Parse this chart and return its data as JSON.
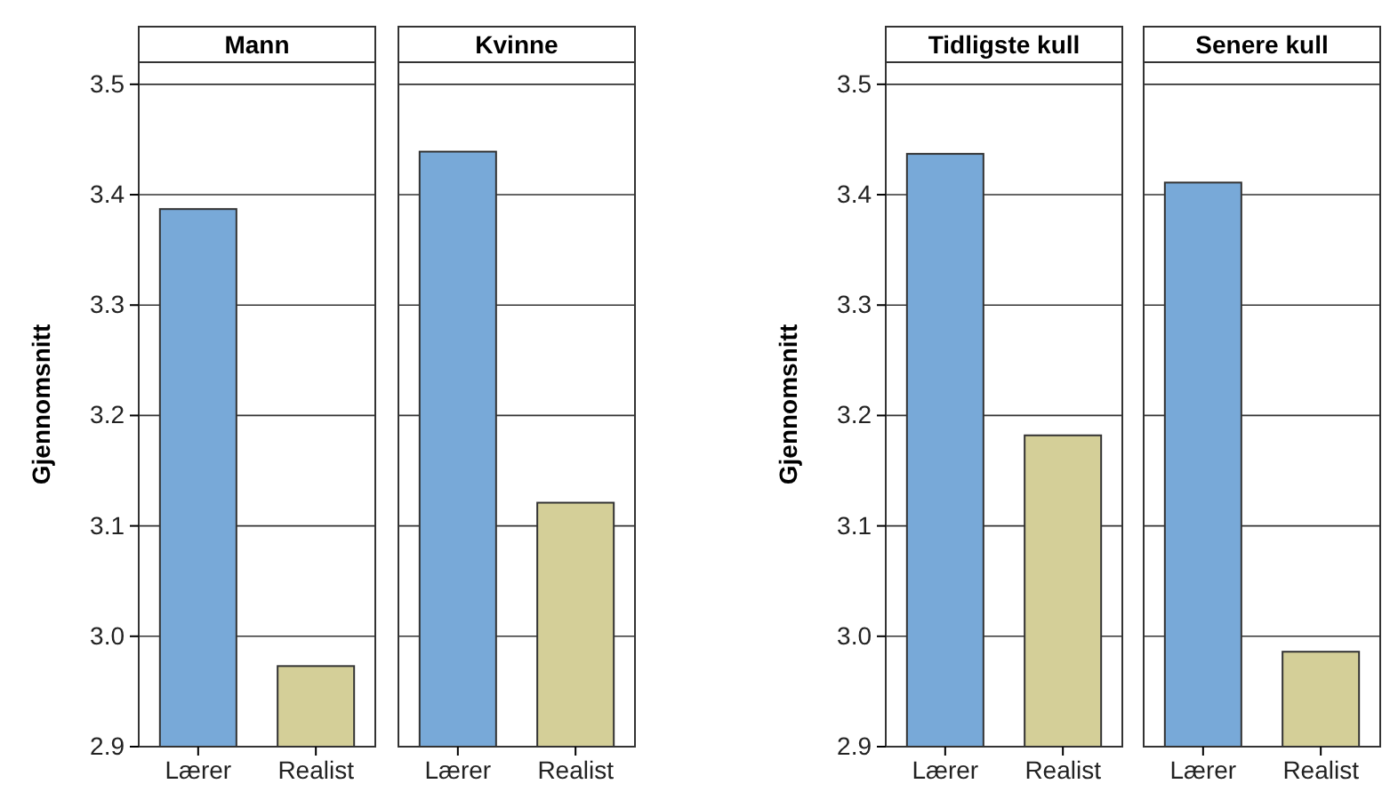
{
  "chart_data": [
    {
      "type": "bar",
      "title": "Mann",
      "ylabel": "Gjennomsnitt",
      "categories": [
        "Lærer",
        "Realist"
      ],
      "values": [
        3.387,
        2.973
      ],
      "colors": [
        "#78a9d8",
        "#d4cf98"
      ],
      "ylim": [
        2.9,
        3.52
      ],
      "yticks": [
        2.9,
        {
          "value": 3.0,
          "label": "3.0"
        },
        3.1,
        3.2,
        3.3,
        3.4,
        3.5
      ],
      "grid": "y"
    },
    {
      "type": "bar",
      "title": "Kvinne",
      "categories": [
        "Lærer",
        "Realist"
      ],
      "values": [
        3.439,
        3.121
      ],
      "colors": [
        "#78a9d8",
        "#d4cf98"
      ],
      "ylim": [
        2.9,
        3.52
      ],
      "yticks": [
        2.9,
        3.0,
        3.1,
        3.2,
        3.3,
        3.4,
        3.5
      ],
      "grid": "y",
      "tick_labels": "x"
    },
    {
      "type": "bar",
      "title": "Tidligste kull",
      "ylabel": "Gjennomsnitt",
      "categories": [
        "Lærer",
        "Realist"
      ],
      "values": [
        3.437,
        3.182
      ],
      "colors": [
        "#78a9d8",
        "#d4cf98"
      ],
      "ylim": [
        2.9,
        3.52
      ],
      "yticks": [
        2.9,
        {
          "value": 3.0,
          "label": "3.0"
        },
        3.1,
        3.2,
        3.3,
        3.4,
        3.5
      ],
      "grid": "y"
    },
    {
      "type": "bar",
      "title": "Senere kull",
      "categories": [
        "Lærer",
        "Realist"
      ],
      "values": [
        3.411,
        2.986
      ],
      "colors": [
        "#78a9d8",
        "#d4cf98"
      ],
      "ylim": [
        2.9,
        3.52
      ],
      "yticks": [
        2.9,
        3.0,
        3.1,
        3.2,
        3.3,
        3.4,
        3.5
      ],
      "grid": "y",
      "tick_labels": "x"
    }
  ]
}
